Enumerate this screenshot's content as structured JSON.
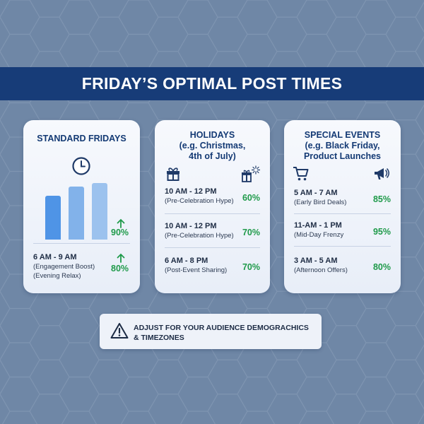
{
  "header": {
    "title": "FRIDAY’S OPTIMAL POST TIMES"
  },
  "colors": {
    "background": "#6f87a6",
    "banner": "#173c78",
    "accent_green": "#1f9a4a",
    "bar_colors": [
      "#4f94e6",
      "#82b2ea",
      "#9cc2ee"
    ]
  },
  "cards": [
    {
      "title": "STANDARD FRIDAYS",
      "icon": "clock-icon",
      "top_percent": "90%",
      "slot": {
        "time": "6 AM - 9 AM",
        "notes": [
          "(Engagement Boost)",
          "(Evening Relax)"
        ],
        "percent": "80%"
      }
    },
    {
      "title_lines": [
        "HOLIDAYS",
        "(e.g. Christmas,",
        "4th of July)"
      ],
      "icons": [
        "gift-icon",
        "gift-sparkle-icon"
      ],
      "slots": [
        {
          "time": "10 AM - 12 PM",
          "note": "(Pre-Celebration Hype)",
          "percent": "60%"
        },
        {
          "time": "10 AM - 12 PM",
          "note": "(Pre-Celebration Hype)",
          "percent": "70%"
        },
        {
          "time": "6 AM - 8 PM",
          "note": "(Post-Event Sharing)",
          "percent": "70%"
        }
      ]
    },
    {
      "title_lines": [
        "SPECIAL EVENTS",
        "(e.g. Black Friday,",
        "Product Launches"
      ],
      "icons": [
        "shopping-cart-icon",
        "megaphone-icon"
      ],
      "slots": [
        {
          "time": "5 AM - 7 AM",
          "note": "(Early Bird Deals)",
          "percent": "85%"
        },
        {
          "time": "11-AM - 1 PM",
          "note": "(Mid-Day Frenzy",
          "percent": "95%"
        },
        {
          "time": "3 AM - 5 AM",
          "note": "(Afternoon Offers)",
          "percent": "80%"
        }
      ]
    }
  ],
  "notice": {
    "icon": "warning-icon",
    "lines": [
      "ADJUST FOR YOUR AUDIENCE DEMOGRACHICS",
      "& TIMEZONES"
    ]
  }
}
